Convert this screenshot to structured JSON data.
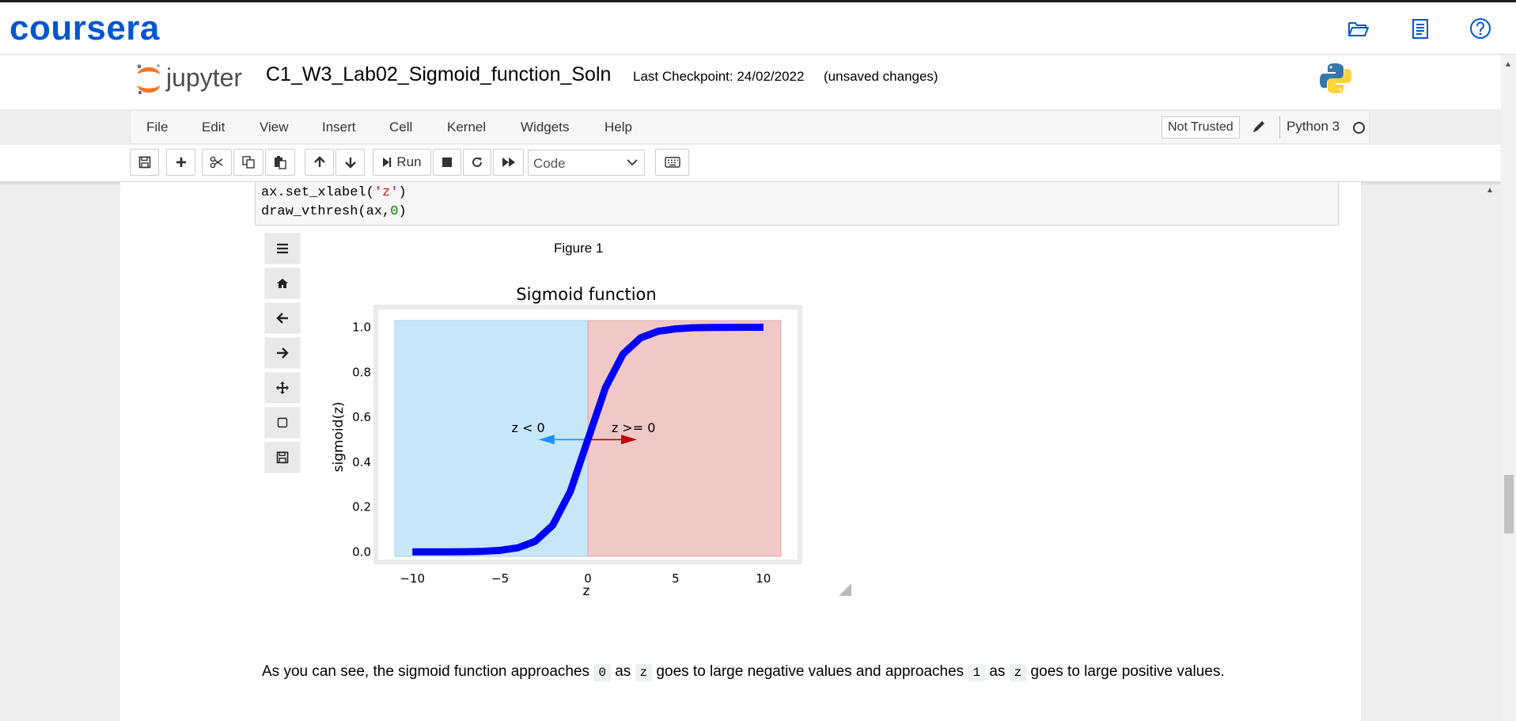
{
  "coursera": {
    "logo": "coursera",
    "icons": [
      "folder-open-icon",
      "notes-icon",
      "help-icon"
    ]
  },
  "jupyter": {
    "logo_text": "jupyter",
    "notebook_title": "C1_W3_Lab02_Sigmoid_function_Soln",
    "checkpoint": "Last Checkpoint: 24/02/2022",
    "save_status": "(unsaved changes)"
  },
  "menu": {
    "items": [
      "File",
      "Edit",
      "View",
      "Insert",
      "Cell",
      "Kernel",
      "Widgets",
      "Help"
    ],
    "trust": "Not Trusted",
    "kernel": "Python 3"
  },
  "toolbar": {
    "run_label": "Run",
    "cell_type": "Code"
  },
  "code_cell": {
    "line1_prefix": "ax.set_xlabel(",
    "line1_str": "'z'",
    "line1_suffix": ")",
    "line2_prefix": "draw_vthresh(ax,",
    "line2_num": "0",
    "line2_suffix": ")"
  },
  "figure": {
    "label": "Figure 1",
    "toolbar_icons": [
      "menu-icon",
      "home-icon",
      "back-icon",
      "forward-icon",
      "pan-icon",
      "zoom-icon",
      "save-icon"
    ]
  },
  "chart_data": {
    "type": "line",
    "title": "Sigmoid function",
    "xlabel": "z",
    "ylabel": "sigmoid(z)",
    "xlim": [
      -11,
      11
    ],
    "ylim": [
      -0.02,
      1.03
    ],
    "xticks": [
      "−10",
      "−5",
      "0",
      "5",
      "10"
    ],
    "xtick_values": [
      -10,
      -5,
      0,
      5,
      10
    ],
    "yticks": [
      "0.0",
      "0.2",
      "0.4",
      "0.6",
      "0.8",
      "1.0"
    ],
    "ytick_values": [
      0.0,
      0.2,
      0.4,
      0.6,
      0.8,
      1.0
    ],
    "series": [
      {
        "color": "#0000ff",
        "x": [
          -10,
          -9,
          -8,
          -7,
          -6,
          -5,
          -4,
          -3,
          -2,
          -1,
          0,
          1,
          2,
          3,
          4,
          5,
          6,
          7,
          8,
          9,
          10
        ],
        "y": [
          5e-05,
          0.00012,
          0.00034,
          0.0009,
          0.0025,
          0.0067,
          0.018,
          0.047,
          0.119,
          0.269,
          0.5,
          0.731,
          0.881,
          0.953,
          0.982,
          0.993,
          0.998,
          0.999,
          0.9997,
          0.9999,
          1.0
        ]
      }
    ],
    "regions": [
      {
        "x_from": -11,
        "x_to": 0,
        "color": "#c8e6fa"
      },
      {
        "x_from": 0,
        "x_to": 11,
        "color": "#f0c8c8"
      }
    ],
    "annotations": [
      {
        "text": "z < 0",
        "x": -3.4,
        "y": 0.55,
        "color": "#000"
      },
      {
        "text": "z >= 0",
        "x": 2.6,
        "y": 0.55,
        "color": "#000"
      }
    ],
    "arrows": [
      {
        "x_from": 0,
        "x_to": -2.8,
        "y": 0.5,
        "color": "#1e90ff"
      },
      {
        "x_from": 0,
        "x_to": 2.8,
        "y": 0.5,
        "color": "#c00000"
      }
    ]
  },
  "markdown": {
    "part1": "As you can see, the sigmoid function approaches ",
    "code1": "0",
    "part2": " as ",
    "code2": "z",
    "part3": " goes to large negative values and approaches ",
    "code3": "1",
    "part4": " as ",
    "code4": "z",
    "part5": " goes to large positive values."
  }
}
